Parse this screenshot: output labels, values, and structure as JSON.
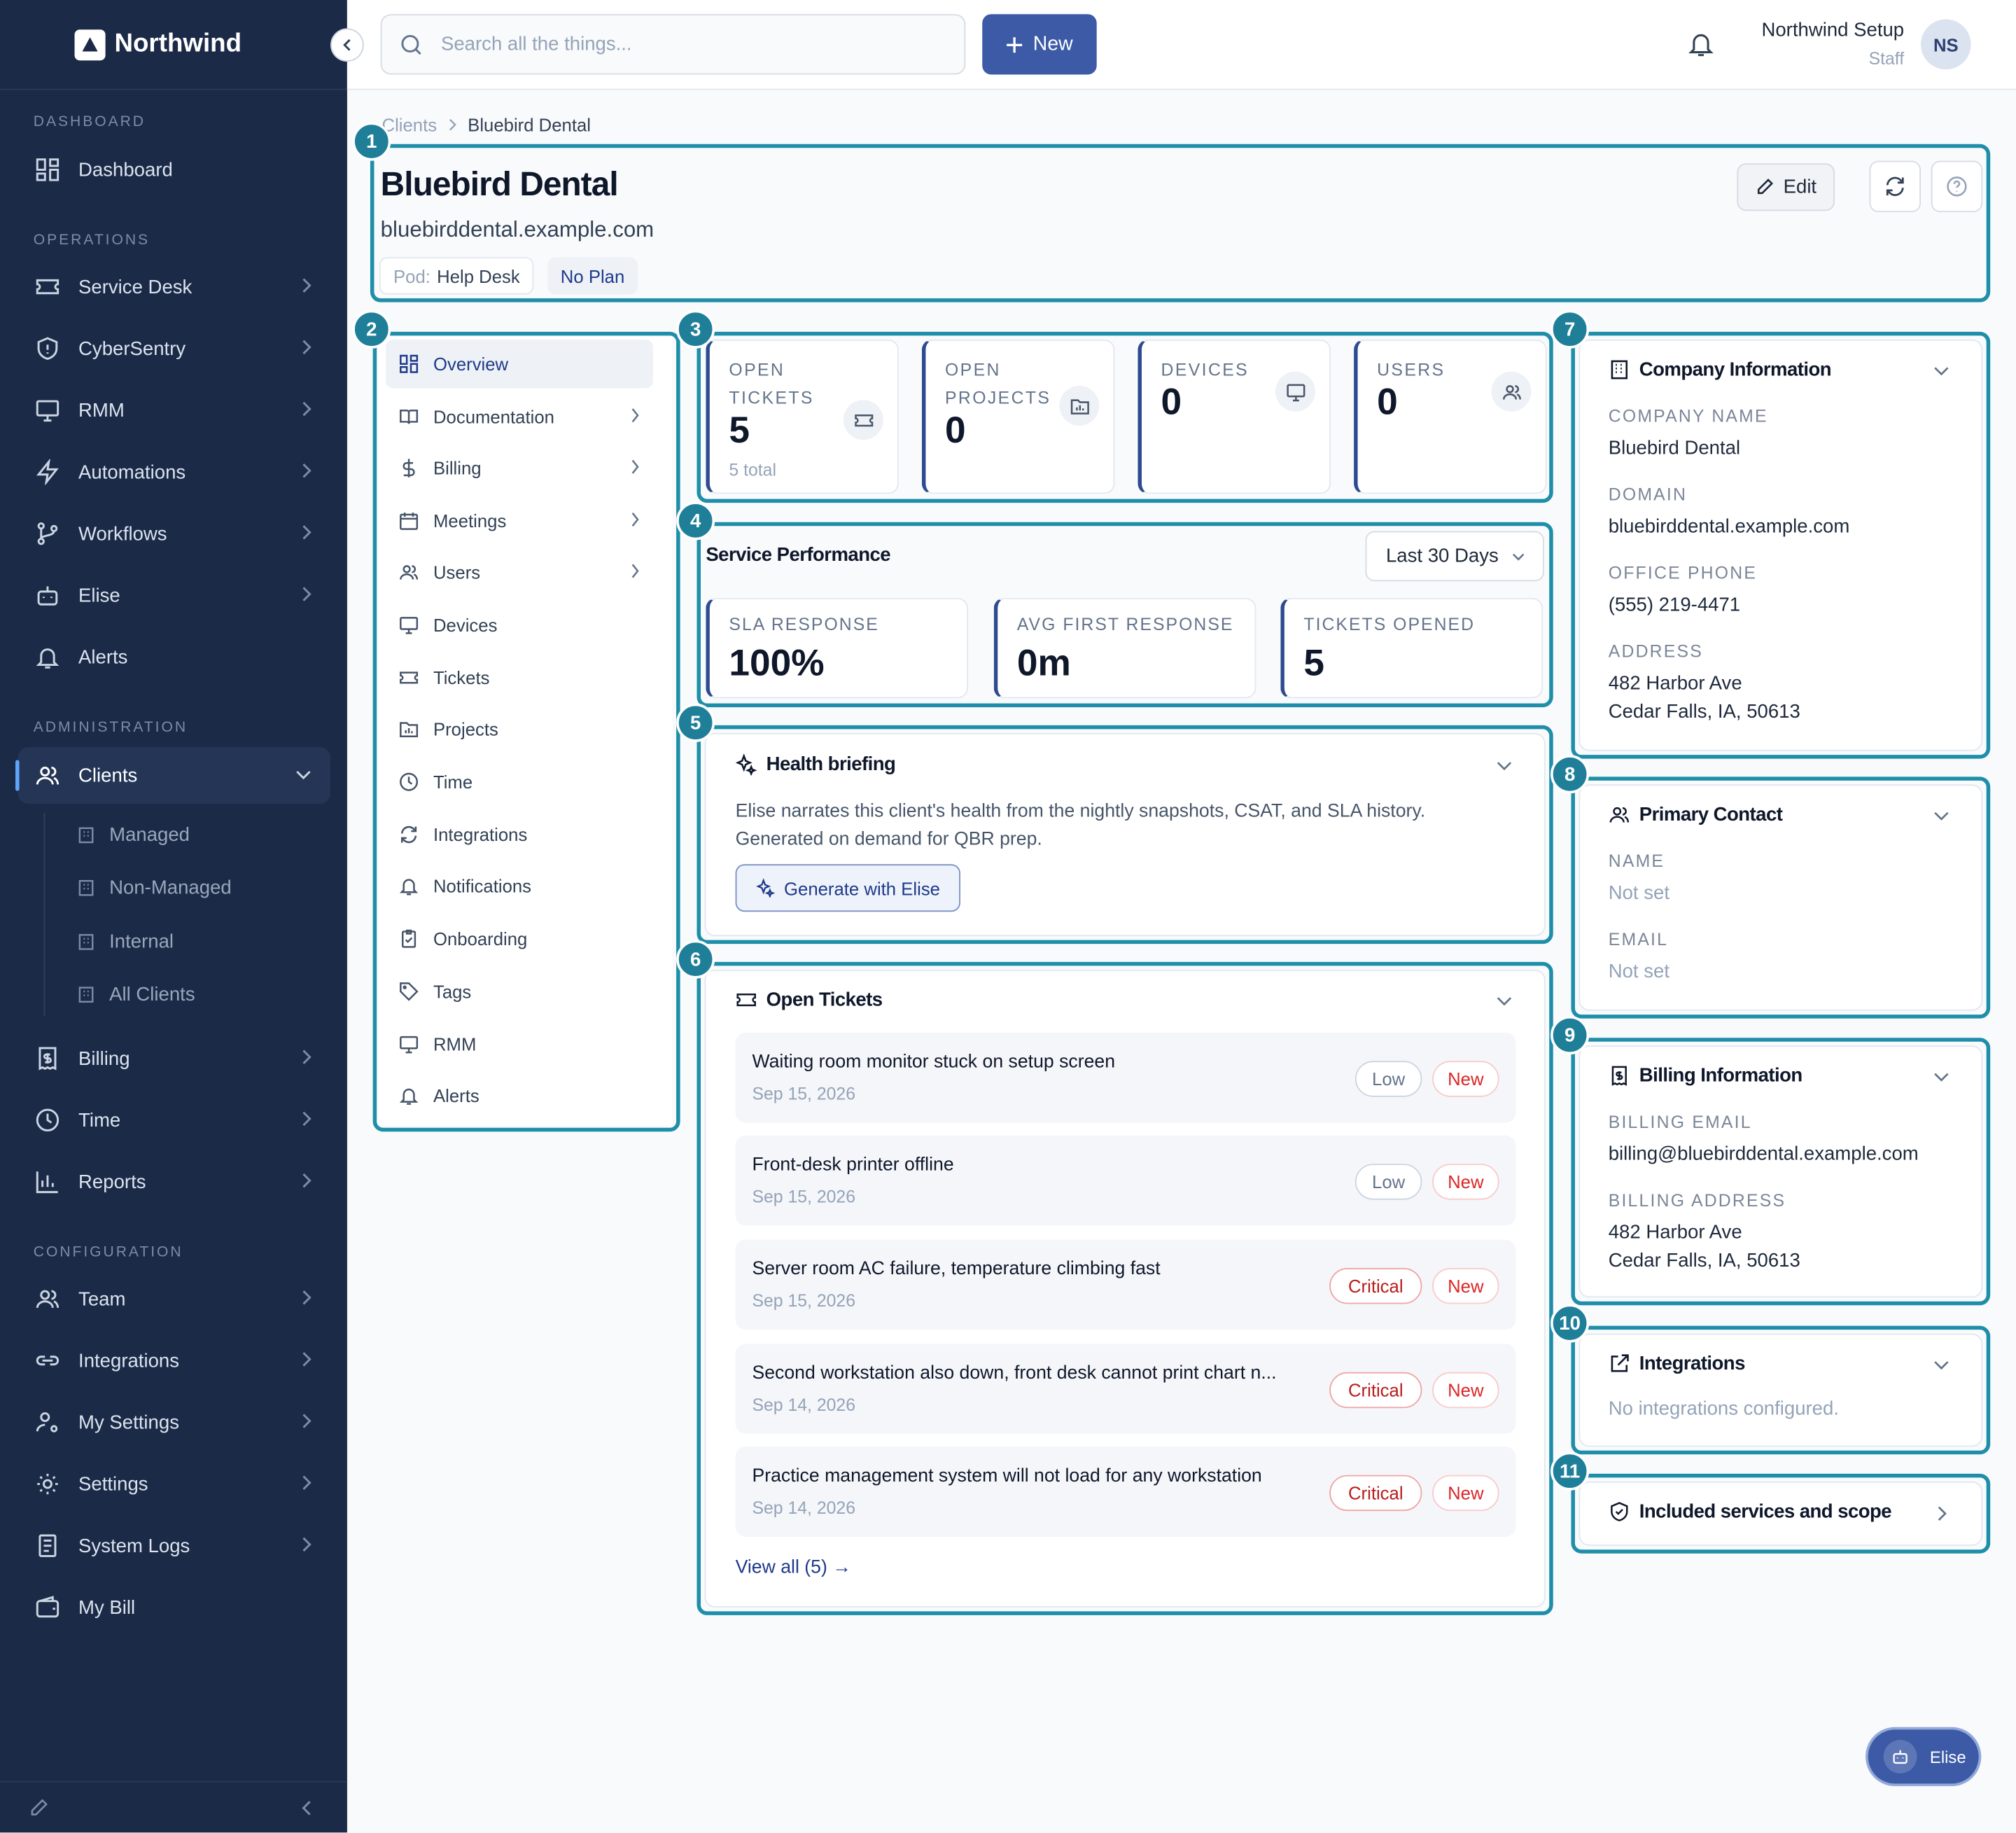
{
  "app": {
    "name": "Northwind"
  },
  "sidebar": {
    "sections": [
      "DASHBOARD",
      "OPERATIONS",
      "ADMINISTRATION",
      "CONFIGURATION"
    ],
    "items": [
      {
        "label": "Dashboard",
        "icon": "grid-icon"
      },
      {
        "label": "Service Desk",
        "icon": "ticket-icon"
      },
      {
        "label": "CyberSentry",
        "icon": "shield-icon"
      },
      {
        "label": "RMM",
        "icon": "monitor-icon"
      },
      {
        "label": "Automations",
        "icon": "bolt-icon"
      },
      {
        "label": "Workflows",
        "icon": "workflow-icon"
      },
      {
        "label": "Elise",
        "icon": "bot-icon"
      },
      {
        "label": "Alerts",
        "icon": "bell-icon"
      },
      {
        "label": "Clients",
        "icon": "users-icon"
      },
      {
        "label": "Billing",
        "icon": "receipt-icon"
      },
      {
        "label": "Time",
        "icon": "clock-icon"
      },
      {
        "label": "Reports",
        "icon": "bar-chart-icon"
      },
      {
        "label": "Team",
        "icon": "users-icon"
      },
      {
        "label": "Integrations",
        "icon": "link-icon"
      },
      {
        "label": "My Settings",
        "icon": "user-cog-icon"
      },
      {
        "label": "Settings",
        "icon": "gear-icon"
      },
      {
        "label": "System Logs",
        "icon": "log-icon"
      },
      {
        "label": "My Bill",
        "icon": "wallet-icon"
      }
    ],
    "clients_sub": [
      "Managed",
      "Non-Managed",
      "Internal",
      "All Clients"
    ]
  },
  "topbar": {
    "search_placeholder": "Search all the things...",
    "new_label": "New",
    "user_name": "Northwind Setup",
    "user_role": "Staff",
    "user_initials": "NS"
  },
  "breadcrumb": {
    "parent": "Clients",
    "current": "Bluebird Dental"
  },
  "header": {
    "title": "Bluebird Dental",
    "domain": "bluebirddental.example.com",
    "pod_label": "Pod:",
    "pod_value": "Help Desk",
    "plan": "No Plan",
    "edit_label": "Edit"
  },
  "callouts": [
    "1",
    "2",
    "3",
    "4",
    "5",
    "6",
    "7",
    "8",
    "9",
    "10",
    "11"
  ],
  "subnav": [
    {
      "label": "Overview",
      "icon": "grid-icon"
    },
    {
      "label": "Documentation",
      "icon": "book-icon"
    },
    {
      "label": "Billing",
      "icon": "dollar-icon"
    },
    {
      "label": "Meetings",
      "icon": "calendar-icon"
    },
    {
      "label": "Users",
      "icon": "users-icon"
    },
    {
      "label": "Devices",
      "icon": "monitor-icon"
    },
    {
      "label": "Tickets",
      "icon": "ticket-icon"
    },
    {
      "label": "Projects",
      "icon": "folder-icon"
    },
    {
      "label": "Time",
      "icon": "clock-icon"
    },
    {
      "label": "Integrations",
      "icon": "refresh-icon"
    },
    {
      "label": "Notifications",
      "icon": "bell-icon"
    },
    {
      "label": "Onboarding",
      "icon": "clipboard-icon"
    },
    {
      "label": "Tags",
      "icon": "tag-icon"
    },
    {
      "label": "RMM",
      "icon": "monitor-icon"
    },
    {
      "label": "Alerts",
      "icon": "bell-icon"
    }
  ],
  "stats": [
    {
      "label": "OPEN TICKETS",
      "value": "5",
      "sub": "5 total",
      "icon": "ticket-icon"
    },
    {
      "label": "OPEN PROJECTS",
      "value": "0",
      "icon": "folder-icon"
    },
    {
      "label": "DEVICES",
      "value": "0",
      "icon": "monitor-icon"
    },
    {
      "label": "USERS",
      "value": "0",
      "icon": "users-icon"
    }
  ],
  "performance": {
    "title": "Service Performance",
    "period": "Last 30 Days",
    "metrics": [
      {
        "label": "SLA RESPONSE",
        "value": "100%"
      },
      {
        "label": "AVG FIRST RESPONSE",
        "value": "0m"
      },
      {
        "label": "TICKETS OPENED",
        "value": "5"
      }
    ]
  },
  "health": {
    "title": "Health briefing",
    "text": "Elise narrates this client's health from the nightly snapshots, CSAT, and SLA history. Generated on demand for QBR prep.",
    "button": "Generate with Elise"
  },
  "tickets": {
    "title": "Open Tickets",
    "items": [
      {
        "title": "Waiting room monitor stuck on setup screen",
        "date": "Sep 15, 2026",
        "priority": "Low",
        "status": "New"
      },
      {
        "title": "Front-desk printer offline",
        "date": "Sep 15, 2026",
        "priority": "Low",
        "status": "New"
      },
      {
        "title": "Server room AC failure, temperature climbing fast",
        "date": "Sep 15, 2026",
        "priority": "Critical",
        "status": "New"
      },
      {
        "title": "Second workstation also down, front desk cannot print chart n...",
        "date": "Sep 14, 2026",
        "priority": "Critical",
        "status": "New"
      },
      {
        "title": "Practice management system will not load for any workstation",
        "date": "Sep 14, 2026",
        "priority": "Critical",
        "status": "New"
      }
    ],
    "view_all": "View all (5) →"
  },
  "company": {
    "title": "Company Information",
    "fields": [
      {
        "label": "COMPANY NAME",
        "value": "Bluebird Dental"
      },
      {
        "label": "DOMAIN",
        "value": "bluebirddental.example.com"
      },
      {
        "label": "OFFICE PHONE",
        "value": "(555) 219-4471"
      },
      {
        "label": "ADDRESS",
        "line1": "482 Harbor Ave",
        "line2": "Cedar Falls, IA, 50613"
      }
    ]
  },
  "contact": {
    "title": "Primary Contact",
    "fields": [
      {
        "label": "NAME",
        "value": "Not set"
      },
      {
        "label": "EMAIL",
        "value": "Not set"
      }
    ]
  },
  "billing_info": {
    "title": "Billing Information",
    "email_label": "BILLING EMAIL",
    "email": "billing@bluebirddental.example.com",
    "address_label": "BILLING ADDRESS",
    "line1": "482 Harbor Ave",
    "line2": "Cedar Falls, IA, 50613"
  },
  "integrations_card": {
    "title": "Integrations",
    "text": "No integrations configured."
  },
  "scope": {
    "title": "Included services and scope"
  },
  "fab": {
    "label": "Elise"
  },
  "colors": {
    "sidebar": "#1b2a47",
    "accent": "#3c5aa6",
    "highlight": "#1f8ea9",
    "critical": "#b91c1c"
  }
}
